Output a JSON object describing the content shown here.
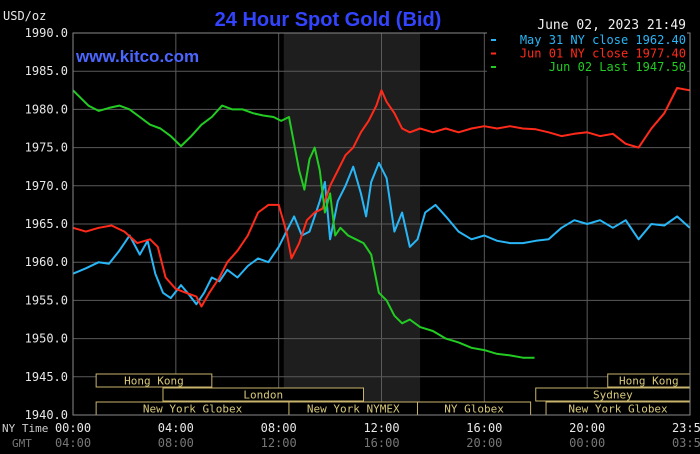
{
  "chart_data": {
    "type": "line",
    "title": "24 Hour Spot Gold (Bid)",
    "watermark": "www.kitco.com",
    "date_label": "June 02, 2023 21:49",
    "ylabel": "USD/oz",
    "ylim": [
      1940,
      1990
    ],
    "yticks": [
      "1990.0",
      "1985.0",
      "1980.0",
      "1975.0",
      "1970.0",
      "1965.0",
      "1960.0",
      "1955.0",
      "1950.0",
      "1945.0",
      "1940.0"
    ],
    "xlim": [
      0,
      24
    ],
    "ny_time_label": "NY Time",
    "gmt_label": "GMT",
    "ny_ticks": [
      {
        "x": 0,
        "label": "00:00"
      },
      {
        "x": 4,
        "label": "04:00"
      },
      {
        "x": 8,
        "label": "08:00"
      },
      {
        "x": 12,
        "label": "12:00"
      },
      {
        "x": 16,
        "label": "16:00"
      },
      {
        "x": 20,
        "label": "20:00"
      },
      {
        "x": 24,
        "label": "23:59"
      }
    ],
    "gmt_ticks": [
      {
        "x": 0,
        "label": "04:00"
      },
      {
        "x": 4,
        "label": "08:00"
      },
      {
        "x": 8,
        "label": "12:00"
      },
      {
        "x": 12,
        "label": "16:00"
      },
      {
        "x": 16,
        "label": "20:00"
      },
      {
        "x": 20,
        "label": "00:00"
      },
      {
        "x": 24,
        "label": "03:59"
      }
    ],
    "shaded_range": [
      8.2,
      13.5
    ],
    "legend_position": "top-right",
    "legend": [
      {
        "text": "May 31 NY close 1962.40",
        "color": "#29b6f6"
      },
      {
        "text": "Jun 01 NY close 1977.40",
        "color": "#ff2a1a"
      },
      {
        "text": "Jun 02 Last 1947.50",
        "color": "#22cc22"
      }
    ],
    "sessions": [
      {
        "label": "Hong Kong",
        "row": 0,
        "start": 0.9,
        "end": 5.4
      },
      {
        "label": "Hong Kong",
        "row": 0,
        "start": 20.8,
        "end": 24
      },
      {
        "label": "London",
        "row": 1,
        "start": 3.5,
        "end": 11.3
      },
      {
        "label": "Sydney",
        "row": 1,
        "start": 18.0,
        "end": 24
      },
      {
        "label": "New York Globex",
        "row": 2,
        "start": 0.9,
        "end": 8.4
      },
      {
        "label": "New York NYMEX",
        "row": 2,
        "start": 8.4,
        "end": 13.4
      },
      {
        "label": "NY Globex",
        "row": 2,
        "start": 13.4,
        "end": 17.8
      },
      {
        "label": "New York Globex",
        "row": 2,
        "start": 18.4,
        "end": 24
      }
    ],
    "series": [
      {
        "name": "May 31 NY close 1962.40",
        "color": "#29b6f6",
        "x": [
          0,
          0.5,
          1,
          1.4,
          1.8,
          2.2,
          2.6,
          2.9,
          3.2,
          3.5,
          3.8,
          4.2,
          4.5,
          4.8,
          5.1,
          5.4,
          5.7,
          6.0,
          6.4,
          6.8,
          7.2,
          7.6,
          8.0,
          8.3,
          8.6,
          8.9,
          9.2,
          9.4,
          9.6,
          9.8,
          10.0,
          10.3,
          10.6,
          10.9,
          11.2,
          11.4,
          11.6,
          11.9,
          12.2,
          12.5,
          12.8,
          13.1,
          13.4,
          13.7,
          14.1,
          14.5,
          15.0,
          15.5,
          16.0,
          16.5,
          17.0,
          17.5,
          18.0,
          18.5,
          19.0,
          19.5,
          20.0,
          20.5,
          21.0,
          21.5,
          22.0,
          22.5,
          23.0,
          23.5,
          23.99
        ],
        "y": [
          1958.5,
          1959.2,
          1960.0,
          1959.8,
          1961.5,
          1963.5,
          1961.0,
          1962.8,
          1958.5,
          1956.0,
          1955.3,
          1957.0,
          1955.8,
          1954.5,
          1956.0,
          1958.0,
          1957.5,
          1959.0,
          1958.0,
          1959.5,
          1960.5,
          1960.0,
          1962.0,
          1964.0,
          1966.0,
          1963.5,
          1964.0,
          1966.0,
          1968.0,
          1970.5,
          1963.0,
          1968.0,
          1970.0,
          1972.5,
          1969.0,
          1966.0,
          1970.5,
          1973.0,
          1971.0,
          1964.0,
          1966.5,
          1962.0,
          1963.0,
          1966.5,
          1967.5,
          1966.0,
          1964.0,
          1963.0,
          1963.5,
          1962.8,
          1962.5,
          1962.5,
          1962.8,
          1963.0,
          1964.5,
          1965.5,
          1965.0,
          1965.5,
          1964.5,
          1965.5,
          1963.0,
          1965.0,
          1964.8,
          1966.0,
          1964.5
        ]
      },
      {
        "name": "Jun 01 NY close 1977.40",
        "color": "#ff2a1a",
        "x": [
          0,
          0.5,
          1,
          1.5,
          2.0,
          2.5,
          3.0,
          3.3,
          3.6,
          4.0,
          4.4,
          4.8,
          5.0,
          5.3,
          5.7,
          6.0,
          6.4,
          6.8,
          7.2,
          7.6,
          8.0,
          8.3,
          8.5,
          8.8,
          9.1,
          9.4,
          9.7,
          10.0,
          10.3,
          10.6,
          10.9,
          11.2,
          11.5,
          11.8,
          12.0,
          12.2,
          12.5,
          12.8,
          13.1,
          13.5,
          14.0,
          14.5,
          15.0,
          15.5,
          16.0,
          16.5,
          17.0,
          17.5,
          18.0,
          18.5,
          19.0,
          19.5,
          20.0,
          20.5,
          21.0,
          21.5,
          22.0,
          22.5,
          23.0,
          23.5,
          23.99
        ],
        "y": [
          1964.5,
          1964.0,
          1964.5,
          1964.8,
          1964.0,
          1962.5,
          1963.0,
          1962.0,
          1958.0,
          1956.5,
          1956.0,
          1955.5,
          1954.2,
          1956.0,
          1958.0,
          1960.0,
          1961.5,
          1963.5,
          1966.5,
          1967.5,
          1967.5,
          1964.0,
          1960.5,
          1962.5,
          1965.5,
          1966.5,
          1967.0,
          1970.0,
          1972.0,
          1974.0,
          1975.0,
          1977.0,
          1978.5,
          1980.5,
          1982.5,
          1981.0,
          1979.5,
          1977.5,
          1977.0,
          1977.5,
          1977.0,
          1977.5,
          1977.0,
          1977.5,
          1977.8,
          1977.5,
          1977.8,
          1977.5,
          1977.4,
          1977.0,
          1976.5,
          1976.8,
          1977.0,
          1976.5,
          1976.8,
          1975.5,
          1975.0,
          1977.5,
          1979.5,
          1982.8,
          1982.5
        ]
      },
      {
        "name": "Jun 02 Last 1947.50",
        "color": "#22cc22",
        "x": [
          0,
          0.3,
          0.6,
          1.0,
          1.4,
          1.8,
          2.2,
          2.6,
          3.0,
          3.4,
          3.8,
          4.2,
          4.6,
          5.0,
          5.4,
          5.8,
          6.2,
          6.6,
          7.0,
          7.4,
          7.8,
          8.1,
          8.4,
          8.6,
          8.8,
          9.0,
          9.2,
          9.4,
          9.6,
          9.8,
          10.0,
          10.2,
          10.4,
          10.7,
          11.0,
          11.3,
          11.6,
          11.9,
          12.2,
          12.5,
          12.8,
          13.1,
          13.5,
          14.0,
          14.5,
          15.0,
          15.5,
          16.0,
          16.5,
          17.0,
          17.5,
          17.95
        ],
        "y": [
          1982.5,
          1981.5,
          1980.5,
          1979.8,
          1980.2,
          1980.5,
          1980.0,
          1979.0,
          1978.0,
          1977.5,
          1976.5,
          1975.2,
          1976.5,
          1978.0,
          1979.0,
          1980.5,
          1980.0,
          1980.0,
          1979.5,
          1979.2,
          1979.0,
          1978.5,
          1979.0,
          1975.5,
          1972.0,
          1969.5,
          1973.5,
          1975.0,
          1972.0,
          1966.5,
          1969.0,
          1963.5,
          1964.5,
          1963.5,
          1963.0,
          1962.5,
          1961.0,
          1956.0,
          1955.0,
          1953.0,
          1952.0,
          1952.5,
          1951.5,
          1951.0,
          1950.0,
          1949.5,
          1948.8,
          1948.5,
          1948.0,
          1947.8,
          1947.5,
          1947.5
        ]
      }
    ]
  }
}
